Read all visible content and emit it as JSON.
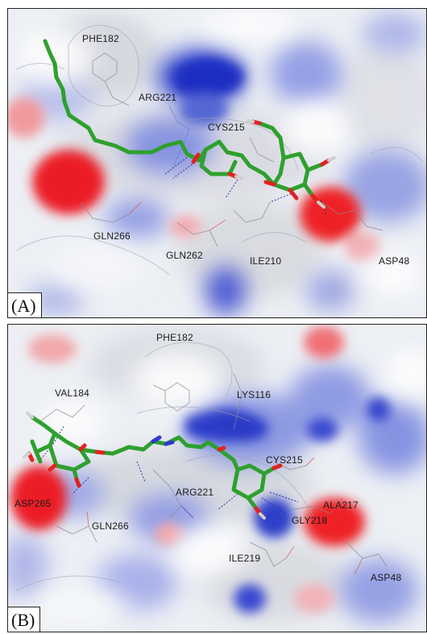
{
  "panels": [
    {
      "tag": "(A)",
      "residues": [
        "PHE182",
        "ARG221",
        "CYS215",
        "GLN266",
        "GLN262",
        "ILE210",
        "ASP48"
      ]
    },
    {
      "tag": "(B)",
      "residues": [
        "PHE182",
        "LYS116",
        "VAL184",
        "CYS215",
        "ARG221",
        "ALA217",
        "ASP265",
        "GLY218",
        "GLN266",
        "ILE219",
        "ASP48"
      ]
    }
  ],
  "colors": {
    "ligand_carbon": "#2ea02e",
    "oxygen": "#e02020",
    "positive_surface": "#1c2fc8",
    "negative_surface": "#e8202a",
    "neutral_surface": "#eef0f4"
  }
}
